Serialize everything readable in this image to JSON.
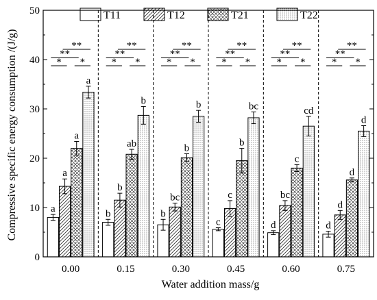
{
  "chart_data": {
    "type": "bar",
    "xlabel": "Water addition mass/g",
    "ylabel": "Compressive specific energy consumption /(J/g)",
    "ylim": [
      0,
      50
    ],
    "yticks": [
      "0",
      "10",
      "20",
      "30",
      "40",
      "50"
    ],
    "categories": [
      "0.00",
      "0.15",
      "0.30",
      "0.45",
      "0.60",
      "0.75"
    ],
    "legend_position": "top",
    "series": [
      {
        "name": "T11",
        "pattern": "blank",
        "values": [
          8.0,
          7.0,
          6.5,
          5.6,
          4.9,
          4.6
        ],
        "errors": [
          0.6,
          0.6,
          1.1,
          0.3,
          0.4,
          0.6
        ],
        "letters": [
          "a",
          "b",
          "b",
          "c",
          "d",
          "d"
        ]
      },
      {
        "name": "T12",
        "pattern": "diagonal",
        "values": [
          14.3,
          11.5,
          10.1,
          9.8,
          10.4,
          8.5
        ],
        "errors": [
          1.5,
          1.4,
          0.8,
          1.6,
          1.0,
          0.9
        ],
        "letters": [
          "a",
          "b",
          "bc",
          "c",
          "bc",
          "d"
        ]
      },
      {
        "name": "T21",
        "pattern": "crosshatch",
        "values": [
          22.0,
          20.8,
          20.1,
          19.5,
          18.0,
          15.6
        ],
        "errors": [
          1.4,
          1.0,
          0.8,
          2.5,
          0.7,
          0.4
        ],
        "letters": [
          "a",
          "ab",
          "b",
          "b",
          "c",
          "d"
        ]
      },
      {
        "name": "T22",
        "pattern": "dots",
        "values": [
          33.4,
          28.7,
          28.5,
          28.2,
          26.5,
          25.5
        ],
        "errors": [
          1.2,
          1.8,
          1.2,
          1.2,
          2.0,
          1.1
        ],
        "letters": [
          "a",
          "b",
          "b",
          "bc",
          "cd",
          "d"
        ]
      }
    ],
    "significance_marks": [
      "**",
      "**",
      "*",
      "*"
    ]
  },
  "colors": {
    "axis": "#000000",
    "bar_fill": "#ffffff",
    "pattern": "#000000"
  }
}
